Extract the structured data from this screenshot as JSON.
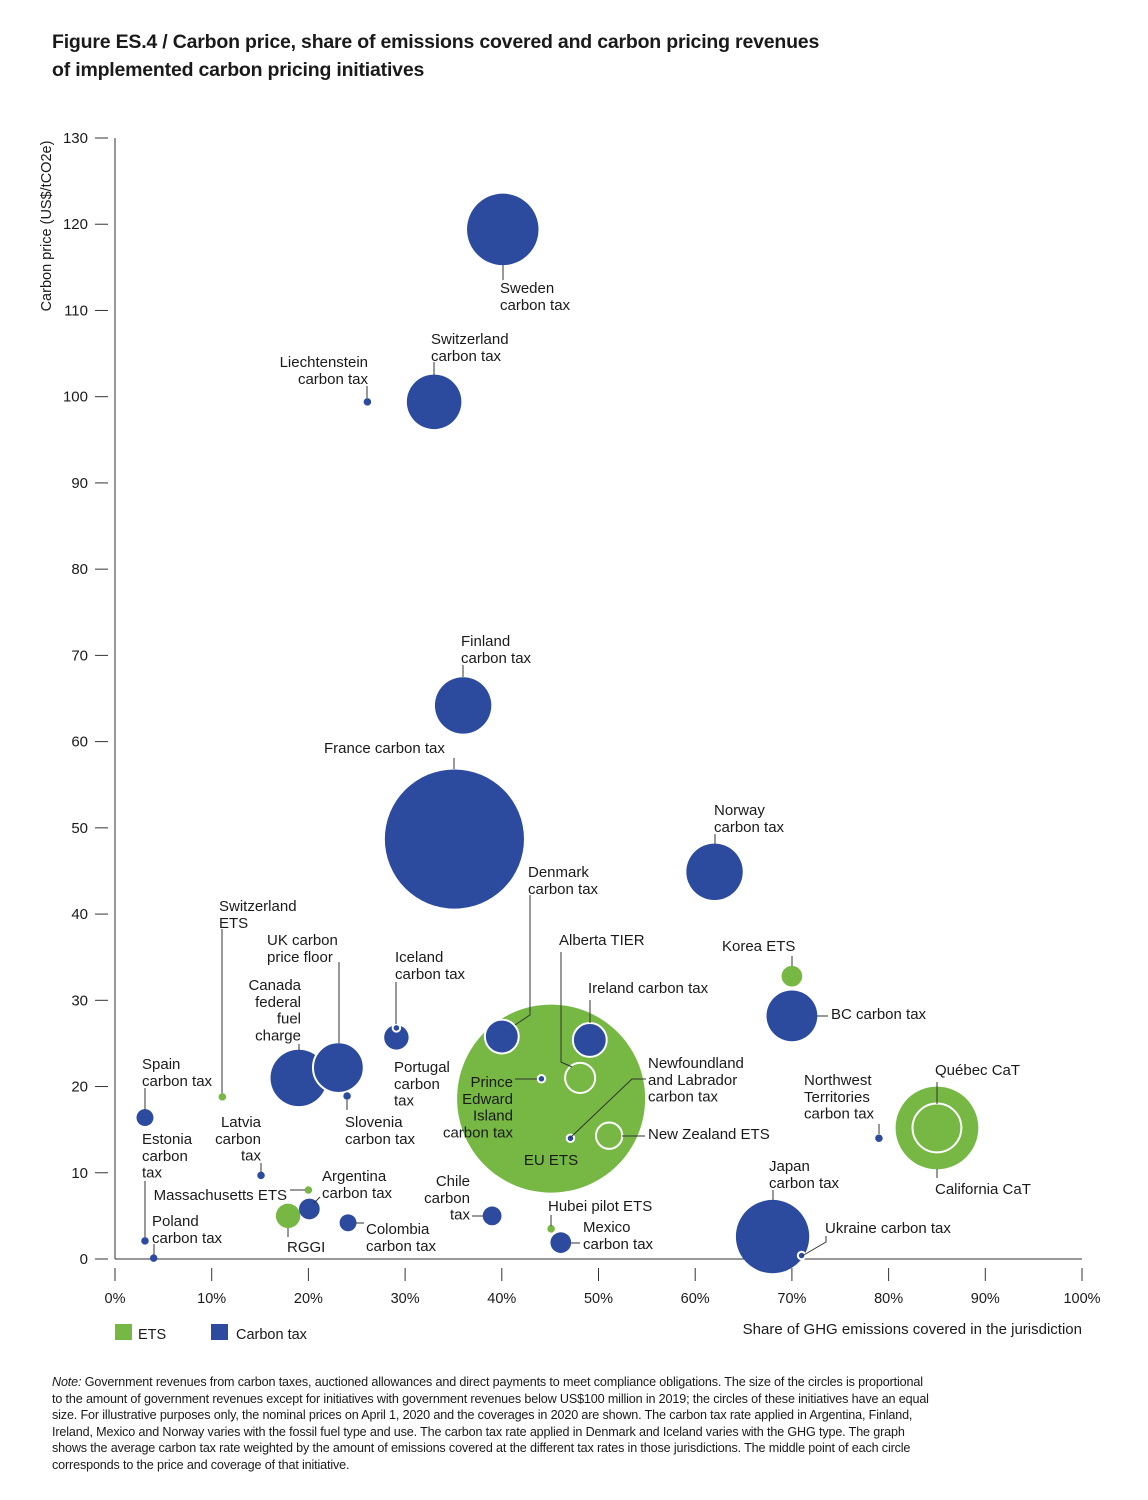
{
  "title": {
    "line1": "Figure ES.4 / Carbon price, share of emissions covered and carbon pricing revenues",
    "line2": "of implemented carbon pricing initiatives"
  },
  "chart_data": {
    "type": "scatter",
    "subtype": "bubble",
    "xlabel": "Share of GHG emissions covered in the jurisdiction",
    "ylabel": "Carbon price (US$/tCO2e)",
    "xlim": [
      0,
      100
    ],
    "ylim": [
      0,
      130
    ],
    "x_ticks": [
      "0%",
      "10%",
      "20%",
      "30%",
      "40%",
      "50%",
      "60%",
      "70%",
      "80%",
      "90%",
      "100%"
    ],
    "y_ticks": [
      "0",
      "10",
      "20",
      "30",
      "40",
      "50",
      "60",
      "70",
      "80",
      "90",
      "100",
      "110",
      "120",
      "130"
    ],
    "grid": false,
    "legend": {
      "placement": "bottom-left",
      "items": [
        {
          "label": "ETS",
          "color": "#76b843"
        },
        {
          "label": "Carbon tax",
          "color": "#2c4a9e"
        }
      ]
    },
    "colors": {
      "ETS": "#76b843",
      "Carbon tax": "#2c4a9e"
    },
    "size_note": "relative bubble size (revenue), EU ETS = 1",
    "points": [
      {
        "label": [
          "Sweden",
          "carbon tax"
        ],
        "type": "Carbon tax",
        "x": 40.1,
        "y": 119.4,
        "size": 0.38
      },
      {
        "label": [
          "Switzerland",
          "carbon tax"
        ],
        "type": "Carbon tax",
        "x": 33.0,
        "y": 99.4,
        "size": 0.29
      },
      {
        "label": [
          "Liechtenstein",
          "carbon tax"
        ],
        "type": "Carbon tax",
        "x": 26.1,
        "y": 99.4,
        "size": 0.04
      },
      {
        "label": [
          "Finland",
          "carbon tax"
        ],
        "type": "Carbon tax",
        "x": 36.0,
        "y": 64.2,
        "size": 0.3
      },
      {
        "label": [
          "France carbon tax"
        ],
        "type": "Carbon tax",
        "x": 35.1,
        "y": 48.7,
        "size": 0.74
      },
      {
        "label": [
          "Norway",
          "carbon tax"
        ],
        "type": "Carbon tax",
        "x": 62.0,
        "y": 44.9,
        "size": 0.3
      },
      {
        "label": [
          "Denmark",
          "carbon tax"
        ],
        "type": "Carbon tax",
        "x": 40.0,
        "y": 25.8,
        "size": 0.18
      },
      {
        "label": [
          "Iceland",
          "carbon tax"
        ],
        "type": "Carbon tax",
        "x": 29.1,
        "y": 26.8,
        "size": 0.04
      },
      {
        "label": [
          "Portugal",
          "carbon",
          "tax"
        ],
        "type": "Carbon tax",
        "x": 29.1,
        "y": 25.7,
        "size": 0.13
      },
      {
        "label": [
          "Canada",
          "federal",
          "fuel",
          "charge"
        ],
        "type": "Carbon tax",
        "x": 19.0,
        "y": 21.0,
        "size": 0.3
      },
      {
        "label": [
          "UK carbon",
          "price floor"
        ],
        "type": "Carbon tax",
        "x": 23.1,
        "y": 22.2,
        "size": 0.27
      },
      {
        "label": [
          "Slovenia",
          "carbon tax"
        ],
        "type": "Carbon tax",
        "x": 24.0,
        "y": 18.9,
        "size": 0.04
      },
      {
        "label": [
          "Spain",
          "carbon tax"
        ],
        "type": "Carbon tax",
        "x": 3.1,
        "y": 16.4,
        "size": 0.09
      },
      {
        "label": [
          "Switzerland",
          "ETS"
        ],
        "type": "ETS",
        "x": 11.1,
        "y": 18.8,
        "size": 0.04
      },
      {
        "label": [
          "Latvia",
          "carbon",
          "tax"
        ],
        "type": "Carbon tax",
        "x": 15.1,
        "y": 9.7,
        "size": 0.04
      },
      {
        "label": [
          "Estonia",
          "carbon",
          "tax"
        ],
        "type": "Carbon tax",
        "x": 3.1,
        "y": 2.1,
        "size": 0.04
      },
      {
        "label": [
          "Poland",
          "carbon tax"
        ],
        "type": "Carbon tax",
        "x": 4.0,
        "y": 0.1,
        "size": 0.04
      },
      {
        "label": [
          "Massachusetts ETS"
        ],
        "type": "ETS",
        "x": 20.0,
        "y": 8.0,
        "size": 0.04
      },
      {
        "label": [
          "RGGI"
        ],
        "type": "ETS",
        "x": 17.9,
        "y": 5.0,
        "size": 0.13
      },
      {
        "label": [
          "Argentina",
          "carbon tax"
        ],
        "type": "Carbon tax",
        "x": 20.1,
        "y": 5.8,
        "size": 0.11
      },
      {
        "label": [
          "Colombia",
          "carbon tax"
        ],
        "type": "Carbon tax",
        "x": 24.1,
        "y": 4.2,
        "size": 0.09
      },
      {
        "label": [
          "Chile",
          "carbon",
          "tax"
        ],
        "type": "Carbon tax",
        "x": 39.0,
        "y": 5.0,
        "size": 0.1
      },
      {
        "label": [
          "EU ETS"
        ],
        "type": "ETS",
        "x": 45.1,
        "y": 18.6,
        "size": 1.0
      },
      {
        "label": [
          "Prince",
          "Edward",
          "Island",
          "carbon tax"
        ],
        "type": "Carbon tax",
        "x": 44.1,
        "y": 20.9,
        "size": 0.04
      },
      {
        "label": [
          "Newfoundland",
          "and Labrador",
          "carbon tax"
        ],
        "type": "Carbon tax",
        "x": 47.1,
        "y": 14.0,
        "size": 0.04
      },
      {
        "label": [
          "Alberta TIER"
        ],
        "type": "ETS",
        "x": 48.1,
        "y": 21.0,
        "size": 0.16
      },
      {
        "label": [
          "Ireland carbon tax"
        ],
        "type": "Carbon tax",
        "x": 49.1,
        "y": 25.4,
        "size": 0.18
      },
      {
        "label": [
          "New Zealand ETS"
        ],
        "type": "ETS",
        "x": 51.1,
        "y": 14.3,
        "size": 0.14
      },
      {
        "label": [
          "Hubei pilot ETS"
        ],
        "type": "ETS",
        "x": 45.1,
        "y": 3.5,
        "size": 0.04
      },
      {
        "label": [
          "Mexico",
          "carbon tax"
        ],
        "type": "Carbon tax",
        "x": 46.1,
        "y": 1.9,
        "size": 0.11
      },
      {
        "label": [
          "Korea ETS"
        ],
        "type": "ETS",
        "x": 70.0,
        "y": 32.8,
        "size": 0.11
      },
      {
        "label": [
          "BC carbon tax"
        ],
        "type": "Carbon tax",
        "x": 70.0,
        "y": 28.2,
        "size": 0.27
      },
      {
        "label": [
          "Northwest",
          "Territories",
          "carbon tax"
        ],
        "type": "Carbon tax",
        "x": 79.0,
        "y": 14.0,
        "size": 0.04
      },
      {
        "label": [
          "California CaT"
        ],
        "type": "ETS",
        "x": 85.0,
        "y": 15.2,
        "size": 0.44
      },
      {
        "label": [
          "Québec CaT"
        ],
        "type": "ETS",
        "x": 85.0,
        "y": 15.2,
        "size": 0.26
      },
      {
        "label": [
          "Japan",
          "carbon tax"
        ],
        "type": "Carbon tax",
        "x": 68.0,
        "y": 2.6,
        "size": 0.39
      },
      {
        "label": [
          "Ukraine carbon tax"
        ],
        "type": "Carbon tax",
        "x": 71.0,
        "y": 0.4,
        "size": 0.04
      }
    ]
  },
  "note": {
    "label": "Note:",
    "lines": [
      " Government revenues from carbon taxes, auctioned allowances and direct payments to meet compliance obligations. The size of the circles is proportional",
      "to the amount of government revenues except for initiatives with government revenues below US$100 million in 2019; the circles of these initiatives have an equal",
      "size. For illustrative purposes only, the nominal prices on April 1, 2020 and the coverages in 2020 are shown. The carbon tax rate applied in Argentina, Finland,",
      "Ireland, Mexico and Norway varies with the fossil fuel type and use. The carbon tax rate applied in Denmark and Iceland varies with the GHG type. The graph",
      "shows the average carbon tax rate weighted by the amount of emissions covered at the different tax rates in those jurisdictions. The middle point of each circle",
      "corresponds to the price and coverage of that initiative."
    ]
  }
}
